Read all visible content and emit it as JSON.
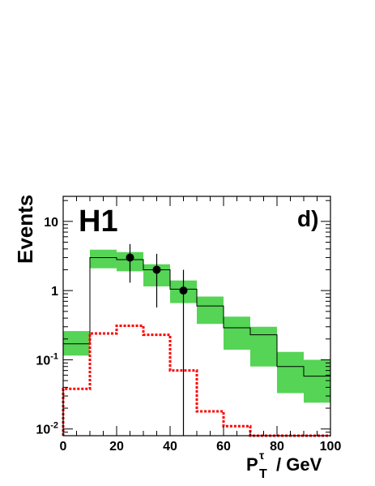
{
  "chart_data": {
    "type": "histogram",
    "experiment_label": "H1",
    "panel_label": "d)",
    "ylabel": "Events",
    "xlabel_main": "P",
    "xlabel_sub": "T",
    "xlabel_sup": "τ",
    "xlabel_unit": "/ GeV",
    "xlim": [
      0,
      100
    ],
    "ylim": [
      0.008,
      23
    ],
    "yscale": "log",
    "x_ticks": [
      0,
      20,
      40,
      60,
      80,
      100
    ],
    "x_tick_labels": [
      "0",
      "20",
      "40",
      "60",
      "80",
      "100"
    ],
    "y_ticks": [
      0.01,
      0.1,
      1,
      10
    ],
    "bin_edges": [
      0,
      10,
      20,
      30,
      40,
      50,
      60,
      70,
      80,
      90,
      100
    ],
    "series": [
      {
        "kind": "prediction",
        "color": "#000000",
        "band_color": "#55d455",
        "values": [
          0.17,
          3.0,
          2.8,
          2.0,
          1.05,
          0.6,
          0.29,
          0.23,
          0.08,
          0.058
        ],
        "band_low": [
          0.115,
          2.1,
          1.9,
          1.15,
          0.66,
          0.33,
          0.14,
          0.08,
          0.033,
          0.024
        ],
        "band_high": [
          0.26,
          3.9,
          3.6,
          2.4,
          1.4,
          0.82,
          0.42,
          0.3,
          0.13,
          0.1
        ]
      },
      {
        "kind": "signal",
        "color": "#ff0000",
        "values": [
          0.038,
          0.24,
          0.31,
          0.23,
          0.07,
          0.018,
          0.011,
          0.008,
          0.008,
          0.008
        ]
      },
      {
        "kind": "data",
        "color": "#000000",
        "points": [
          {
            "x": 25,
            "y": 3.0,
            "low": 1.3,
            "high": 4.7
          },
          {
            "x": 35,
            "y": 2.0,
            "low": 0.57,
            "high": 3.4
          },
          {
            "x": 45,
            "y": 1.0,
            "low": 0.008,
            "high": 2.0
          }
        ]
      }
    ]
  }
}
